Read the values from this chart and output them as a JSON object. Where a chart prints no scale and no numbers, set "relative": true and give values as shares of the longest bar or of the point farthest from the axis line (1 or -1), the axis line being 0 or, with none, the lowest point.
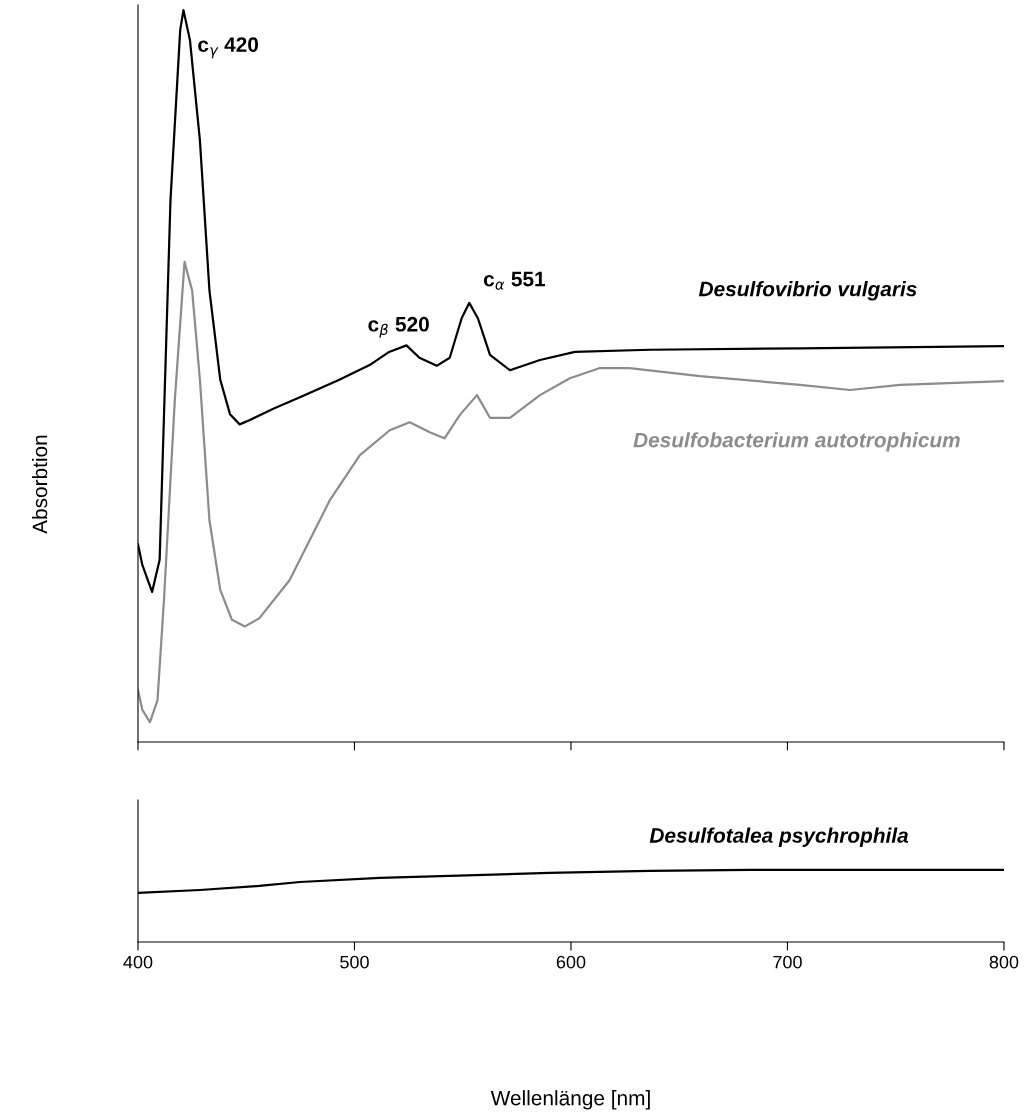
{
  "chart_data": [
    {
      "type": "line",
      "relative": true,
      "ylabel": "Absorbtion",
      "xlim": [
        400,
        800
      ],
      "xticks": [
        400,
        500,
        600,
        700,
        800
      ],
      "tick_labels": false,
      "series": [
        {
          "name": "Desulfovibrio vulgaris",
          "color": "#000000",
          "x": [
            400,
            402,
            406.5,
            410,
            415,
            419.5,
            421,
            424,
            428.6,
            433,
            438,
            442.5,
            447,
            451.7,
            463,
            474.8,
            493,
            507,
            516,
            524,
            530,
            538,
            544,
            549.5,
            553,
            557,
            562.6,
            571.8,
            585.7,
            601.8,
            636.5,
            705.8,
            800
          ],
          "values": [
            0.27,
            0.242,
            0.205,
            0.249,
            0.74,
            0.973,
            1.0,
            0.959,
            0.822,
            0.617,
            0.495,
            0.448,
            0.434,
            0.44,
            0.456,
            0.471,
            0.495,
            0.515,
            0.533,
            0.542,
            0.525,
            0.514,
            0.525,
            0.579,
            0.6,
            0.579,
            0.529,
            0.508,
            0.522,
            0.533,
            0.536,
            0.538,
            0.541
          ]
        },
        {
          "name": "Desulfobacterium autotrophicum",
          "color": "#8c8c8c",
          "x": [
            400,
            402,
            405.5,
            409,
            412,
            417,
            421.5,
            425,
            428.6,
            433,
            438,
            443.4,
            449.4,
            456,
            470,
            488.7,
            502.5,
            516.3,
            525.5,
            535,
            541.6,
            548.7,
            556.6,
            562.6,
            571.8,
            585.7,
            599.5,
            613.4,
            627,
            659.6,
            705.8,
            728.9,
            752,
            800
          ],
          "values": [
            0.071,
            0.044,
            0.027,
            0.057,
            0.194,
            0.467,
            0.656,
            0.617,
            0.495,
            0.303,
            0.208,
            0.167,
            0.158,
            0.169,
            0.221,
            0.331,
            0.392,
            0.426,
            0.437,
            0.423,
            0.415,
            0.447,
            0.474,
            0.443,
            0.443,
            0.474,
            0.497,
            0.511,
            0.511,
            0.5,
            0.488,
            0.481,
            0.488,
            0.493
          ]
        }
      ],
      "annotations": [
        {
          "text": "c$_{γ}$ 420",
          "x": 421,
          "y": 1.0
        },
        {
          "text": "c$_{β}$ 520",
          "x": 524,
          "y": 0.542
        },
        {
          "text": "c$_{α}$ 551",
          "x": 553,
          "y": 0.6
        }
      ]
    },
    {
      "type": "line",
      "relative": true,
      "xlabel": "Wellenlänge [nm]",
      "xlim": [
        400,
        800
      ],
      "xticks": [
        400,
        500,
        600,
        700,
        800
      ],
      "tick_labels": "x",
      "series": [
        {
          "name": "Desulfotalea psychrophila",
          "color": "#000000",
          "x": [
            400,
            428.6,
            456,
            474.8,
            511.8,
            544,
            590,
            636.5,
            682.7,
            800
          ],
          "values": [
            0.681,
            0.722,
            0.778,
            0.833,
            0.889,
            0.917,
            0.958,
            0.986,
            1.0,
            1.0
          ]
        }
      ]
    }
  ]
}
